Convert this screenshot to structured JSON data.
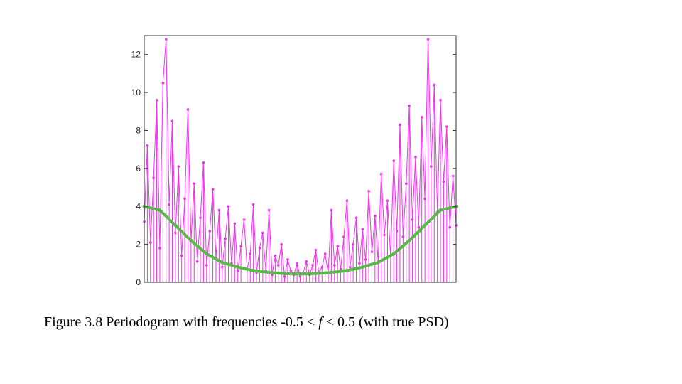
{
  "caption": {
    "prefix": "Figure 3.8  Periodogram with frequencies -0.5 < ",
    "variable": "f",
    "suffix": " <  0.5 (with true PSD)"
  },
  "colors": {
    "periodogram": "#ee33ee",
    "true_psd": "#55bb44",
    "axes": "#333333",
    "background": "#ffffff"
  },
  "chart_data": {
    "type": "line",
    "xlim": [
      -0.5,
      0.5
    ],
    "ylim": [
      0,
      13
    ],
    "y_ticks": [
      0,
      2,
      4,
      6,
      8,
      10,
      12
    ],
    "y_tick_labels": [
      "0",
      "2",
      "4",
      "6",
      "8",
      "10",
      "12"
    ],
    "x_tick_labels": [],
    "grid": false,
    "series": [
      {
        "role": "periodogram",
        "style": "markers-with-stems",
        "x": [
          -0.5,
          -0.49,
          -0.48,
          -0.47,
          -0.46,
          -0.45,
          -0.44,
          -0.43,
          -0.42,
          -0.41,
          -0.4,
          -0.39,
          -0.38,
          -0.37,
          -0.36,
          -0.35,
          -0.34,
          -0.33,
          -0.32,
          -0.31,
          -0.3,
          -0.29,
          -0.28,
          -0.27,
          -0.26,
          -0.25,
          -0.24,
          -0.23,
          -0.22,
          -0.21,
          -0.2,
          -0.19,
          -0.18,
          -0.17,
          -0.16,
          -0.15,
          -0.14,
          -0.13,
          -0.12,
          -0.11,
          -0.1,
          -0.09,
          -0.08,
          -0.07,
          -0.06,
          -0.05,
          -0.04,
          -0.03,
          -0.02,
          -0.01,
          0,
          0.01,
          0.02,
          0.03,
          0.04,
          0.05,
          0.06,
          0.07,
          0.08,
          0.09,
          0.1,
          0.11,
          0.12,
          0.13,
          0.14,
          0.15,
          0.16,
          0.17,
          0.18,
          0.19,
          0.2,
          0.21,
          0.22,
          0.23,
          0.24,
          0.25,
          0.26,
          0.27,
          0.28,
          0.29,
          0.3,
          0.31,
          0.32,
          0.33,
          0.34,
          0.35,
          0.36,
          0.37,
          0.38,
          0.39,
          0.4,
          0.41,
          0.42,
          0.43,
          0.44,
          0.45,
          0.46,
          0.47,
          0.48,
          0.49,
          0.5
        ],
        "y": [
          3.2,
          7.2,
          2.1,
          5.5,
          9.6,
          1.8,
          10.5,
          12.8,
          4.1,
          8.5,
          2.6,
          6.1,
          1.4,
          4.4,
          9.1,
          2.2,
          5.2,
          1.1,
          3.4,
          6.3,
          0.9,
          2.7,
          4.9,
          1.3,
          3.8,
          0.8,
          2.3,
          4.0,
          1.0,
          3.1,
          0.6,
          1.9,
          3.3,
          0.7,
          1.5,
          4.1,
          0.5,
          1.8,
          2.6,
          0.6,
          3.8,
          0.4,
          1.4,
          0.9,
          2.0,
          0.3,
          1.2,
          0.6,
          0.4,
          1.0,
          0.3,
          0.5,
          1.1,
          0.4,
          0.9,
          1.7,
          0.5,
          0.8,
          1.5,
          0.5,
          3.8,
          0.9,
          1.9,
          0.7,
          2.4,
          4.3,
          0.8,
          2.0,
          3.4,
          1.0,
          2.8,
          1.2,
          4.8,
          1.6,
          3.5,
          1.1,
          5.7,
          2.5,
          4.3,
          1.4,
          6.4,
          2.7,
          8.3,
          2.4,
          5.2,
          9.3,
          3.3,
          6.6,
          2.9,
          8.7,
          4.4,
          12.8,
          6.1,
          10.4,
          3.7,
          9.6,
          5.3,
          8.2,
          2.9,
          5.6,
          3.0
        ]
      },
      {
        "role": "true_psd",
        "style": "thick-line",
        "x": [
          -0.5,
          -0.45,
          -0.4,
          -0.35,
          -0.3,
          -0.25,
          -0.2,
          -0.15,
          -0.1,
          -0.05,
          0,
          0.05,
          0.1,
          0.15,
          0.2,
          0.25,
          0.3,
          0.35,
          0.4,
          0.45,
          0.5
        ],
        "y": [
          4.0,
          3.8,
          3.0,
          2.2,
          1.5,
          1.05,
          0.8,
          0.62,
          0.52,
          0.46,
          0.44,
          0.46,
          0.52,
          0.62,
          0.8,
          1.05,
          1.5,
          2.2,
          3.0,
          3.8,
          4.0
        ]
      }
    ]
  }
}
